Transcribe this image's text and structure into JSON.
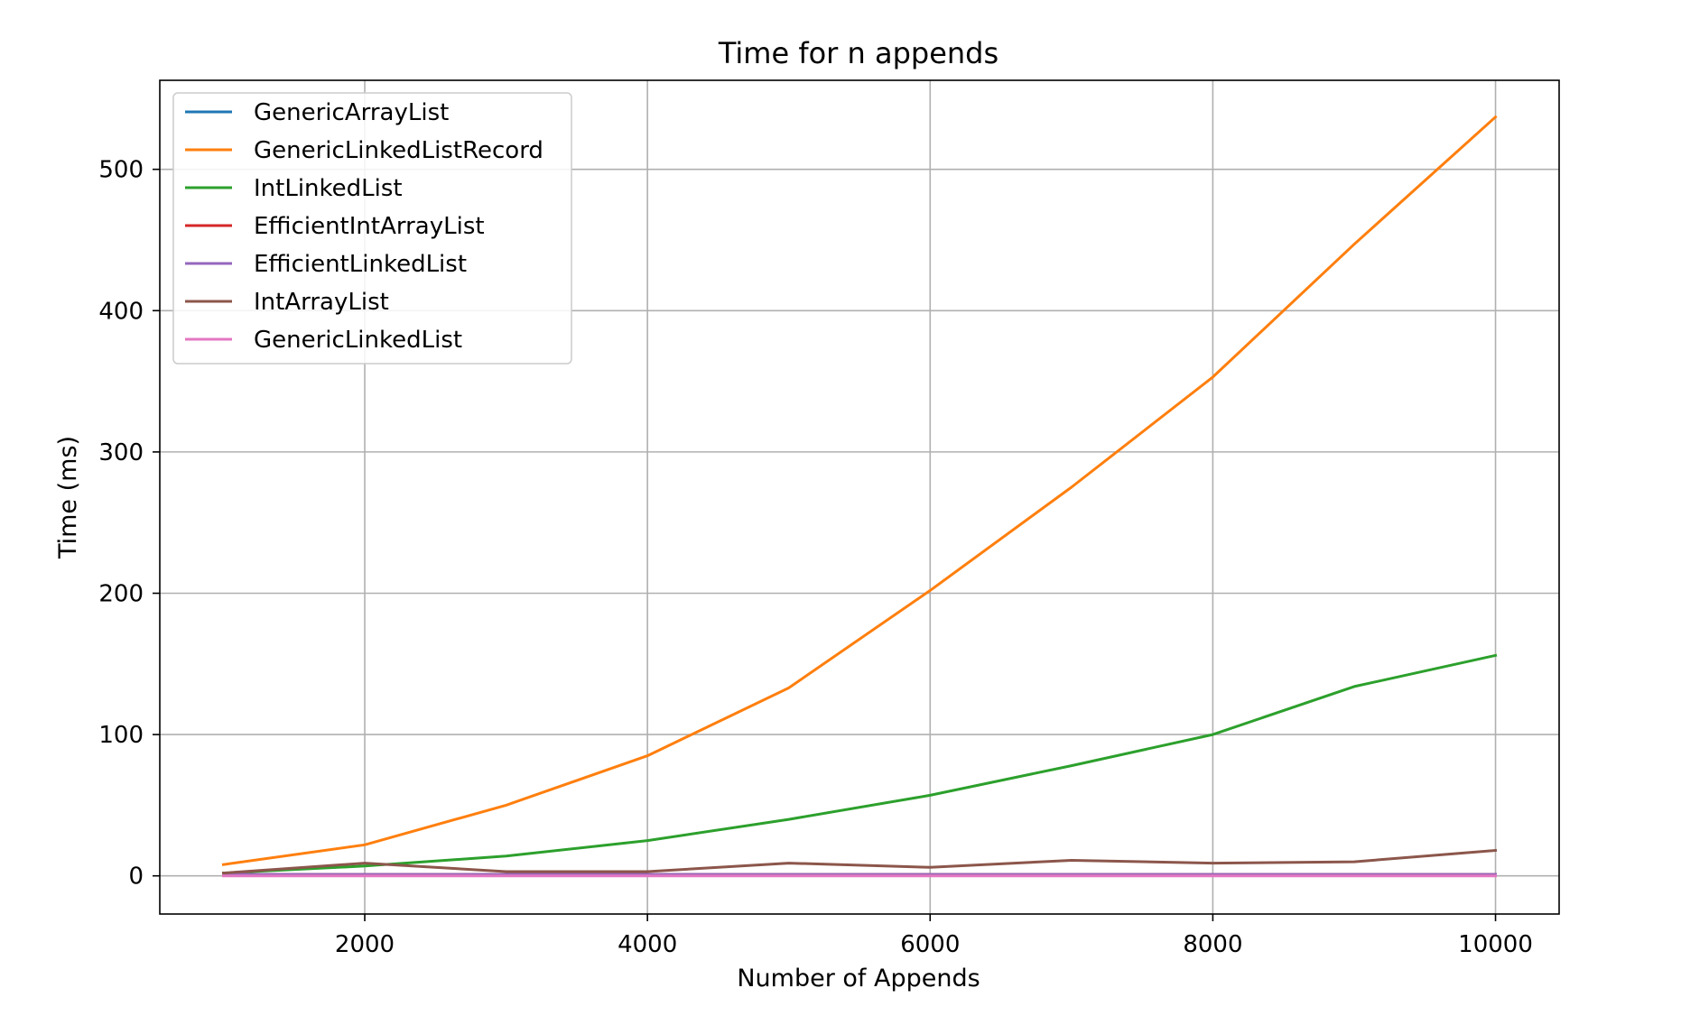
{
  "chart_data": {
    "type": "line",
    "title": "Time for n appends",
    "xlabel": "Number of Appends",
    "ylabel": "Time (ms)",
    "xlim": [
      550,
      10450
    ],
    "ylim": [
      -27,
      563
    ],
    "xticks": [
      2000,
      4000,
      6000,
      8000,
      10000
    ],
    "yticks": [
      0,
      100,
      200,
      300,
      400,
      500
    ],
    "grid": true,
    "legend_position": "top-left",
    "x": [
      1000,
      2000,
      3000,
      4000,
      5000,
      6000,
      7000,
      8000,
      9000,
      10000
    ],
    "series": [
      {
        "name": "GenericArrayList",
        "color": "#1f77b4",
        "values": [
          1,
          1,
          1,
          1,
          1,
          1,
          1,
          1,
          1,
          1
        ]
      },
      {
        "name": "GenericLinkedListRecord",
        "color": "#ff7f0e",
        "values": [
          8,
          22,
          50,
          85,
          133,
          202,
          275,
          353,
          447,
          537
        ]
      },
      {
        "name": "IntLinkedList",
        "color": "#2ca02c",
        "values": [
          2,
          7,
          14,
          25,
          40,
          57,
          78,
          100,
          134,
          156
        ]
      },
      {
        "name": "EfficientIntArrayList",
        "color": "#d62728",
        "values": [
          1,
          1,
          1,
          1,
          1,
          1,
          1,
          1,
          1,
          1
        ]
      },
      {
        "name": "EfficientLinkedList",
        "color": "#9467bd",
        "values": [
          1,
          1,
          1,
          1,
          1,
          1,
          1,
          1,
          1,
          1
        ]
      },
      {
        "name": "IntArrayList",
        "color": "#8c564b",
        "values": [
          2,
          9,
          3,
          3,
          9,
          6,
          11,
          9,
          10,
          18
        ]
      },
      {
        "name": "GenericLinkedList",
        "color": "#e377c2",
        "values": [
          0,
          0,
          0,
          0,
          0,
          0,
          0,
          0,
          0,
          0
        ]
      }
    ]
  }
}
